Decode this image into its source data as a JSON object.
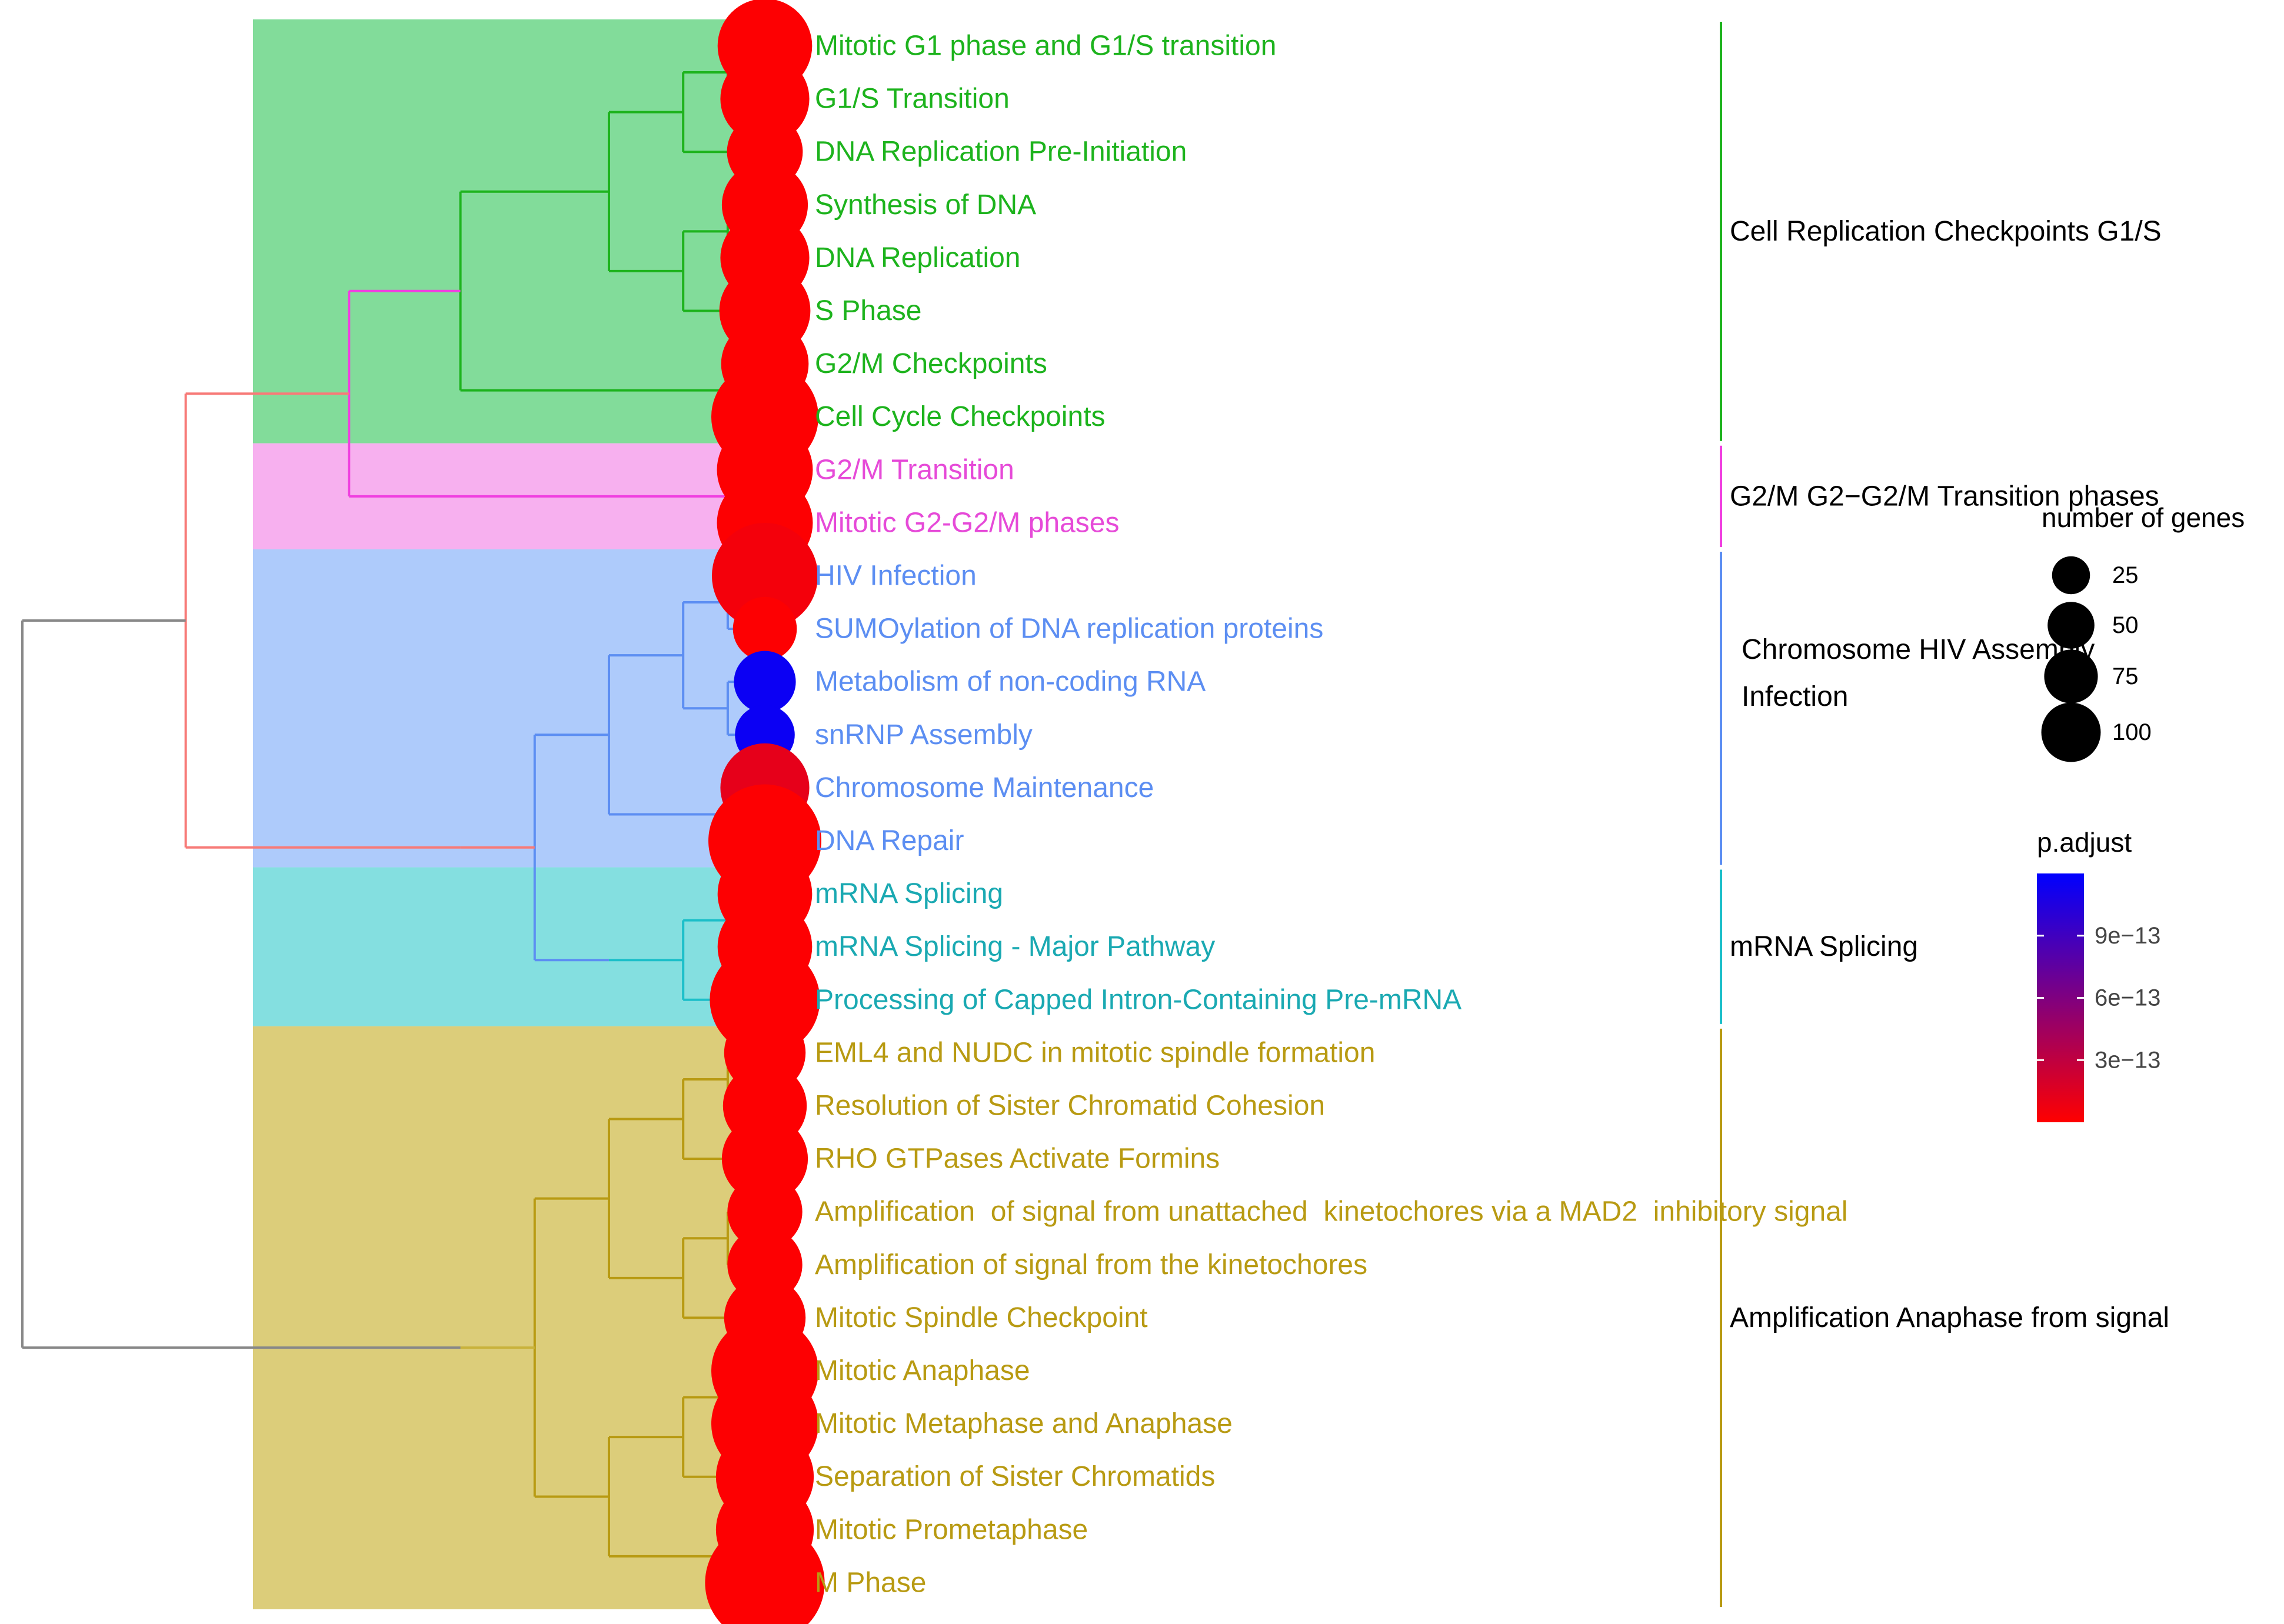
{
  "chart_data": {
    "type": "tree",
    "title": "",
    "terms": [
      {
        "label": "Mitotic G1 phase and G1/S transition",
        "cluster": 0,
        "count": 70,
        "p_adjust": 1e-14
      },
      {
        "label": "G1/S Transition",
        "cluster": 0,
        "count": 62,
        "p_adjust": 1e-14
      },
      {
        "label": "DNA Replication Pre-Initiation",
        "cluster": 0,
        "count": 45,
        "p_adjust": 1e-14
      },
      {
        "label": "Synthesis of DNA",
        "cluster": 0,
        "count": 58,
        "p_adjust": 1e-14
      },
      {
        "label": "DNA Replication",
        "cluster": 0,
        "count": 62,
        "p_adjust": 1e-14
      },
      {
        "label": "S Phase",
        "cluster": 0,
        "count": 65,
        "p_adjust": 1e-14
      },
      {
        "label": "G2/M Checkpoints",
        "cluster": 0,
        "count": 60,
        "p_adjust": 1e-14
      },
      {
        "label": "Cell Cycle Checkpoints",
        "cluster": 0,
        "count": 90,
        "p_adjust": 1e-14
      },
      {
        "label": "G2/M Transition",
        "cluster": 1,
        "count": 72,
        "p_adjust": 1e-14
      },
      {
        "label": "Mitotic G2-G2/M phases",
        "cluster": 1,
        "count": 72,
        "p_adjust": 1e-14
      },
      {
        "label": "HIV Infection",
        "cluster": 2,
        "count": 88,
        "p_adjust": 5e-14
      },
      {
        "label": "SUMOylation of DNA replication proteins",
        "cluster": 2,
        "count": 32,
        "p_adjust": 1e-14
      },
      {
        "label": "Metabolism of non-coding RNA",
        "cluster": 2,
        "count": 30,
        "p_adjust": 1.15e-12
      },
      {
        "label": "snRNP Assembly",
        "cluster": 2,
        "count": 28,
        "p_adjust": 1.15e-12
      },
      {
        "label": "Chromosome Maintenance",
        "cluster": 2,
        "count": 62,
        "p_adjust": 1.2e-13
      },
      {
        "label": "DNA Repair",
        "cluster": 2,
        "count": 100,
        "p_adjust": 1e-14
      },
      {
        "label": "mRNA Splicing",
        "cluster": 3,
        "count": 70,
        "p_adjust": 1e-14
      },
      {
        "label": "mRNA Splicing - Major Pathway",
        "cluster": 3,
        "count": 70,
        "p_adjust": 1e-14
      },
      {
        "label": "Processing of Capped Intron-Containing Pre-mRNA",
        "cluster": 3,
        "count": 95,
        "p_adjust": 1e-14
      },
      {
        "label": "EML4 and NUDC in mitotic spindle formation",
        "cluster": 4,
        "count": 52,
        "p_adjust": 1e-14
      },
      {
        "label": "Resolution of Sister Chromatid Cohesion",
        "cluster": 4,
        "count": 55,
        "p_adjust": 1e-14
      },
      {
        "label": "RHO GTPases Activate Formins",
        "cluster": 4,
        "count": 58,
        "p_adjust": 1e-14
      },
      {
        "label": "Amplification  of signal from unattached  kinetochores via a MAD2  inhibitory signal",
        "cluster": 4,
        "count": 44,
        "p_adjust": 1e-14
      },
      {
        "label": "Amplification of signal from the kinetochores",
        "cluster": 4,
        "count": 44,
        "p_adjust": 1e-14
      },
      {
        "label": "Mitotic Spindle Checkpoint",
        "cluster": 4,
        "count": 52,
        "p_adjust": 1e-14
      },
      {
        "label": "Mitotic Anaphase",
        "cluster": 4,
        "count": 90,
        "p_adjust": 1e-14
      },
      {
        "label": "Mitotic Metaphase and Anaphase",
        "cluster": 4,
        "count": 90,
        "p_adjust": 1e-14
      },
      {
        "label": "Separation of Sister Chromatids",
        "cluster": 4,
        "count": 75,
        "p_adjust": 1e-14
      },
      {
        "label": "Mitotic Prometaphase",
        "cluster": 4,
        "count": 75,
        "p_adjust": 1e-14
      },
      {
        "label": "M Phase",
        "cluster": 4,
        "count": 112,
        "p_adjust": 1e-14
      }
    ],
    "clusters": [
      {
        "name": "Cell Replication Checkpoints G1/S",
        "label_lines": [
          "Cell Replication Checkpoints G1/S"
        ],
        "color": "#1db31d",
        "fill": "#82dc9a",
        "text_color": "#1db31d"
      },
      {
        "name": "G2/M G2-G2/M Transition phases",
        "label_lines": [
          "G2/M G2−G2/M Transition phases"
        ],
        "color": "#f03fe0",
        "fill": "#f7b0ef",
        "text_color": "#e64ad8"
      },
      {
        "name": "Chromosome HIV Assembly Infection",
        "label_lines": [
          "Chromosome HIV Assembly",
          "Infection"
        ],
        "color": "#5c8ef2",
        "fill": "#aecbfb",
        "text_color": "#5c8ef2"
      },
      {
        "name": "mRNA Splicing",
        "label_lines": [
          "mRNA Splicing"
        ],
        "color": "#1cbfc9",
        "fill": "#84dfe0",
        "text_color": "#1aa9b2"
      },
      {
        "name": "Amplification Anaphase from signal",
        "label_lines": [
          "Amplification Anaphase from signal"
        ],
        "color": "#b89a12",
        "fill": "#dccd7a",
        "text_color": "#b89a12"
      }
    ],
    "tree": {
      "height": 1.0,
      "children": [
        {
          "height": 0.78,
          "color": "#f77b78",
          "children": [
            {
              "height": 0.56,
              "color": "#f03fe0",
              "children": [
                {
                  "height": 0.41,
                  "color": "#1db31d",
                  "children": [
                    {
                      "height": 0.21,
                      "color": "#1db31d",
                      "children": [
                        {
                          "height": 0.11,
                          "color": "#1db31d",
                          "children": [
                            {
                              "height": 0.05,
                              "color": "#1db31d",
                              "children": [
                                {
                                  "leaf": 0
                                },
                                {
                                  "leaf": 1
                                }
                              ]
                            },
                            {
                              "leaf": 2
                            }
                          ]
                        },
                        {
                          "height": 0.11,
                          "color": "#1db31d",
                          "children": [
                            {
                              "height": 0.05,
                              "color": "#1db31d",
                              "children": [
                                {
                                  "leaf": 3
                                },
                                {
                                  "leaf": 4
                                }
                              ]
                            },
                            {
                              "leaf": 5
                            }
                          ]
                        }
                      ]
                    },
                    {
                      "height": 0.05,
                      "color": "#1db31d",
                      "children": [
                        {
                          "leaf": 6
                        },
                        {
                          "leaf": 7
                        }
                      ]
                    }
                  ]
                },
                {
                  "height": 0.05,
                  "color": "#f03fe0",
                  "children": [
                    {
                      "leaf": 8
                    },
                    {
                      "leaf": 9
                    }
                  ]
                }
              ]
            },
            {
              "height": 0.41,
              "color": "#f77b78",
              "children": [
                {
                  "height": 0.31,
                  "color": "#5c8ef2",
                  "children": [
                    {
                      "height": 0.21,
                      "color": "#5c8ef2",
                      "children": [
                        {
                          "height": 0.11,
                          "color": "#5c8ef2",
                          "children": [
                            {
                              "height": 0.05,
                              "color": "#5c8ef2",
                              "children": [
                                {
                                  "leaf": 10
                                },
                                {
                                  "leaf": 11
                                }
                              ]
                            },
                            {
                              "height": 0.05,
                              "color": "#5c8ef2",
                              "children": [
                                {
                                  "leaf": 12
                                },
                                {
                                  "leaf": 13
                                }
                              ]
                            }
                          ]
                        },
                        {
                          "height": 0.05,
                          "color": "#5c8ef2",
                          "children": [
                            {
                              "leaf": 14
                            },
                            {
                              "leaf": 15
                            }
                          ]
                        }
                      ]
                    },
                    {
                      "height": 0.21,
                      "color": "#1cbfc9",
                      "children": [
                        {
                          "height": 0.11,
                          "color": "#1cbfc9",
                          "children": [
                            {
                              "height": 0.05,
                              "color": "#1cbfc9",
                              "children": [
                                {
                                  "leaf": 16
                                },
                                {
                                  "leaf": 17
                                }
                              ]
                            },
                            {
                              "leaf": 18
                            }
                          ]
                        }
                      ]
                    }
                  ]
                }
              ]
            }
          ]
        },
        {
          "height": 0.41,
          "color": "#c9b23c",
          "children": [
            {
              "height": 0.31,
              "color": "#b89a12",
              "children": [
                {
                  "height": 0.21,
                  "color": "#b89a12",
                  "children": [
                    {
                      "height": 0.11,
                      "color": "#b89a12",
                      "children": [
                        {
                          "height": 0.05,
                          "color": "#b89a12",
                          "children": [
                            {
                              "leaf": 19
                            },
                            {
                              "leaf": 20
                            }
                          ]
                        },
                        {
                          "leaf": 21
                        }
                      ]
                    },
                    {
                      "height": 0.11,
                      "color": "#b89a12",
                      "children": [
                        {
                          "height": 0.05,
                          "color": "#b89a12",
                          "children": [
                            {
                              "leaf": 22
                            },
                            {
                              "leaf": 23
                            }
                          ]
                        },
                        {
                          "leaf": 24
                        }
                      ]
                    }
                  ]
                },
                {
                  "height": 0.21,
                  "color": "#b89a12",
                  "children": [
                    {
                      "height": 0.11,
                      "color": "#b89a12",
                      "children": [
                        {
                          "height": 0.05,
                          "color": "#b89a12",
                          "children": [
                            {
                              "leaf": 25
                            },
                            {
                              "leaf": 26
                            }
                          ]
                        },
                        {
                          "leaf": 27
                        }
                      ]
                    },
                    {
                      "height": 0.05,
                      "color": "#b89a12",
                      "children": [
                        {
                          "leaf": 28
                        },
                        {
                          "leaf": 29
                        }
                      ]
                    }
                  ]
                }
              ]
            }
          ]
        }
      ]
    },
    "legend_size": {
      "title": "number of genes",
      "entries": [
        {
          "value": 25,
          "label": "25"
        },
        {
          "value": 50,
          "label": "50"
        },
        {
          "value": 75,
          "label": "75"
        },
        {
          "value": 100,
          "label": "100"
        }
      ]
    },
    "legend_color": {
      "title": "p.adjust",
      "min": 0,
      "max": 1.2e-12,
      "low_color": "#ff0000",
      "high_color": "#0000ff",
      "ticks": [
        {
          "value": 3e-13,
          "label": "3e−13"
        },
        {
          "value": 6e-13,
          "label": "6e−13"
        },
        {
          "value": 9e-13,
          "label": "9e−13"
        }
      ]
    }
  }
}
